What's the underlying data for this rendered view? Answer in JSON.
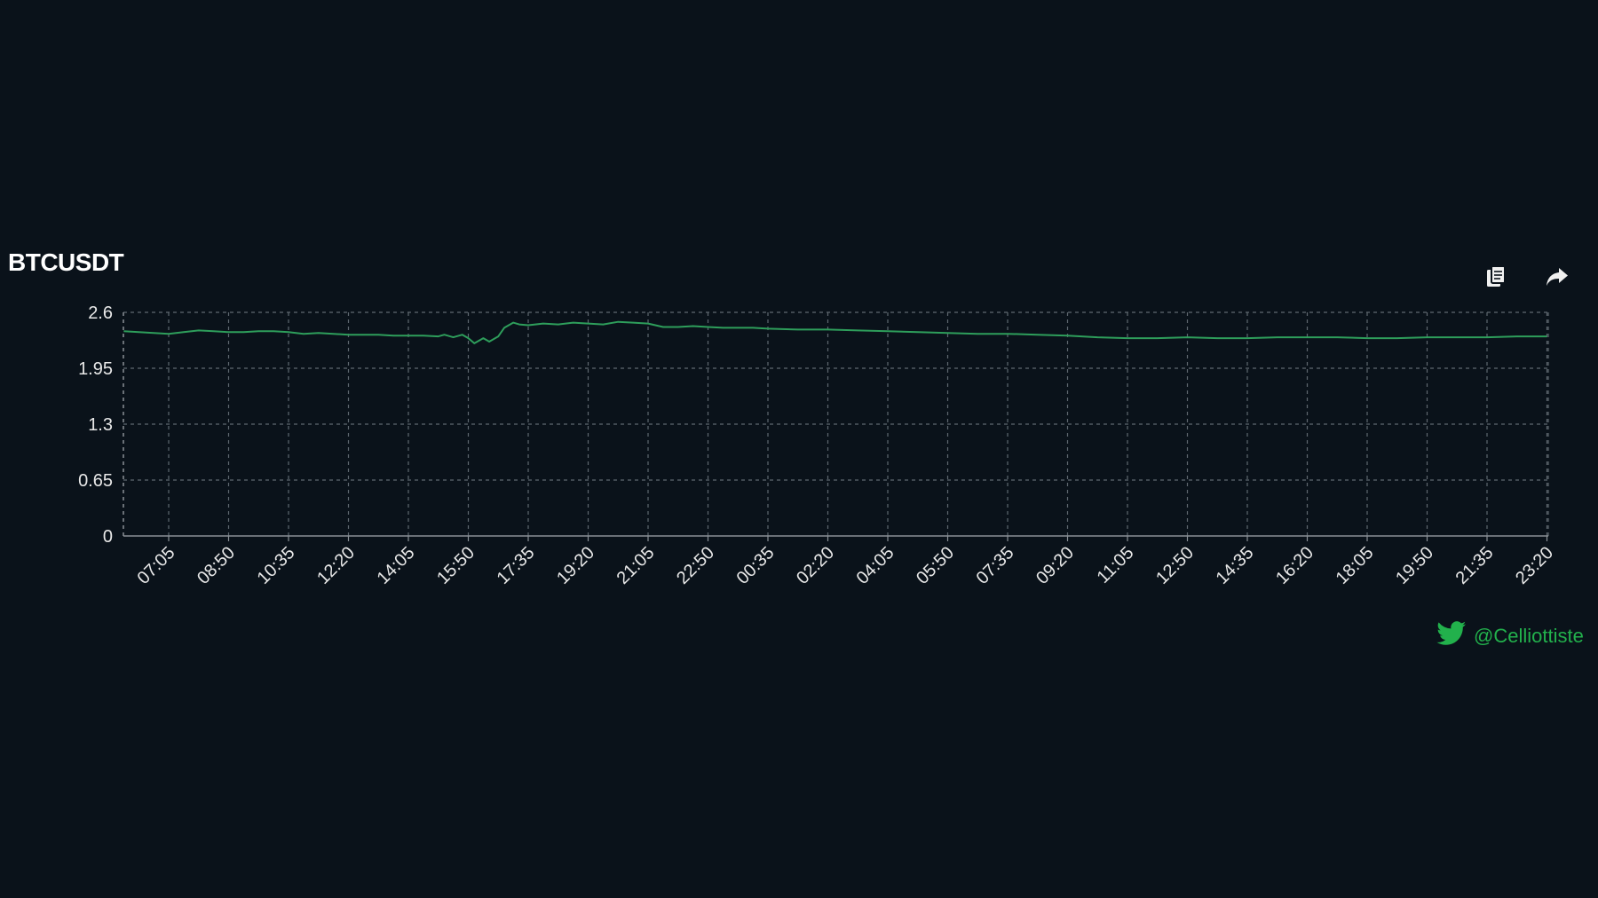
{
  "chart_data": {
    "type": "line",
    "title": "BTCUSDT",
    "xlabel": "",
    "ylabel": "",
    "ylim": [
      0,
      2.6
    ],
    "yticks": [
      "2.6",
      "1.95",
      "1.3",
      "0.65",
      "0"
    ],
    "grid": true,
    "categories": [
      "07:05",
      "08:50",
      "10:35",
      "12:20",
      "14:05",
      "15:50",
      "17:35",
      "19:20",
      "21:05",
      "22:50",
      "00:35",
      "02:20",
      "04:05",
      "05:50",
      "07:35",
      "09:20",
      "11:05",
      "12:50",
      "14:35",
      "16:20",
      "18:05",
      "19:50",
      "21:35",
      "23:20"
    ],
    "series": [
      {
        "color": "#2e9e5b",
        "x": [
          -0.75,
          -0.5,
          -0.25,
          0,
          0.25,
          0.5,
          0.75,
          1,
          1.25,
          1.5,
          1.75,
          2,
          2.25,
          2.5,
          2.75,
          3,
          3.25,
          3.5,
          3.75,
          4,
          4.25,
          4.5,
          4.6,
          4.75,
          4.9,
          5,
          5.1,
          5.25,
          5.35,
          5.5,
          5.6,
          5.75,
          5.85,
          6,
          6.25,
          6.5,
          6.75,
          7,
          7.25,
          7.5,
          7.75,
          8,
          8.25,
          8.5,
          8.75,
          9,
          9.25,
          9.5,
          9.75,
          10,
          10.5,
          11,
          11.5,
          12,
          12.5,
          13,
          13.5,
          14,
          14.5,
          15,
          15.5,
          16,
          16.5,
          17,
          17.5,
          18,
          18.5,
          19,
          19.5,
          20,
          20.5,
          21,
          21.5,
          22,
          22.5,
          23
        ],
        "values": [
          2.38,
          2.37,
          2.36,
          2.35,
          2.37,
          2.39,
          2.38,
          2.37,
          2.37,
          2.38,
          2.38,
          2.37,
          2.35,
          2.36,
          2.35,
          2.34,
          2.34,
          2.34,
          2.33,
          2.33,
          2.33,
          2.32,
          2.34,
          2.31,
          2.34,
          2.3,
          2.24,
          2.3,
          2.26,
          2.32,
          2.42,
          2.48,
          2.46,
          2.45,
          2.47,
          2.46,
          2.48,
          2.47,
          2.46,
          2.49,
          2.48,
          2.47,
          2.43,
          2.43,
          2.44,
          2.43,
          2.42,
          2.42,
          2.42,
          2.41,
          2.4,
          2.4,
          2.39,
          2.38,
          2.37,
          2.36,
          2.35,
          2.35,
          2.34,
          2.33,
          2.31,
          2.3,
          2.3,
          2.31,
          2.3,
          2.3,
          2.31,
          2.31,
          2.31,
          2.3,
          2.3,
          2.31,
          2.31,
          2.31,
          2.32,
          2.32
        ]
      }
    ]
  },
  "toolbar": {
    "copy_icon": "copy-icon",
    "share_icon": "share-icon"
  },
  "credit": {
    "icon": "twitter-bird-icon",
    "handle": "@Celliottiste",
    "color": "#22b14c"
  }
}
